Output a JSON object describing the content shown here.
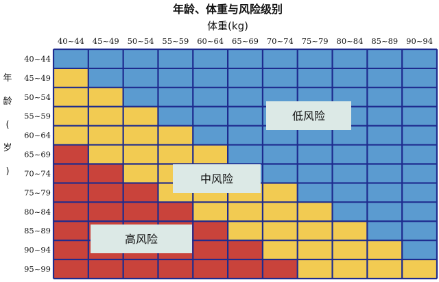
{
  "colors": {
    "low": "#5b9bd0",
    "mid": "#f2cb52",
    "high": "#c9433b",
    "grid": "#1e2b8e",
    "label_box": "#dce9e6"
  },
  "chart_data": {
    "type": "heatmap",
    "title": "年龄、体重与风险级别",
    "xlabel": "体重(kg)",
    "ylabel": "年龄(岁)",
    "x": [
      "40~44",
      "45~49",
      "50~54",
      "55~59",
      "60~64",
      "65~69",
      "70~74",
      "75~79",
      "80~84",
      "85~89",
      "90~94"
    ],
    "y": [
      "40~44",
      "45~49",
      "50~54",
      "55~59",
      "60~64",
      "65~69",
      "70~74",
      "75~79",
      "80~84",
      "85~89",
      "90~94",
      "95~99"
    ],
    "legend_categories": [
      "低风险",
      "中风险",
      "高风险"
    ],
    "values": [
      [
        "低风险",
        "低风险",
        "低风险",
        "低风险",
        "低风险",
        "低风险",
        "低风险",
        "低风险",
        "低风险",
        "低风险",
        "低风险"
      ],
      [
        "中风险",
        "低风险",
        "低风险",
        "低风险",
        "低风险",
        "低风险",
        "低风险",
        "低风险",
        "低风险",
        "低风险",
        "低风险"
      ],
      [
        "中风险",
        "中风险",
        "低风险",
        "低风险",
        "低风险",
        "低风险",
        "低风险",
        "低风险",
        "低风险",
        "低风险",
        "低风险"
      ],
      [
        "中风险",
        "中风险",
        "中风险",
        "低风险",
        "低风险",
        "低风险",
        "低风险",
        "低风险",
        "低风险",
        "低风险",
        "低风险"
      ],
      [
        "中风险",
        "中风险",
        "中风险",
        "中风险",
        "低风险",
        "低风险",
        "低风险",
        "低风险",
        "低风险",
        "低风险",
        "低风险"
      ],
      [
        "高风险",
        "中风险",
        "中风险",
        "中风险",
        "中风险",
        "低风险",
        "低风险",
        "低风险",
        "低风险",
        "低风险",
        "低风险"
      ],
      [
        "高风险",
        "高风险",
        "中风险",
        "中风险",
        "中风险",
        "低风险",
        "低风险",
        "低风险",
        "低风险",
        "低风险",
        "低风险"
      ],
      [
        "高风险",
        "高风险",
        "高风险",
        "中风险",
        "中风险",
        "中风险",
        "中风险",
        "低风险",
        "低风险",
        "低风险",
        "低风险"
      ],
      [
        "高风险",
        "高风险",
        "高风险",
        "高风险",
        "中风险",
        "中风险",
        "中风险",
        "中风险",
        "低风险",
        "低风险",
        "低风险"
      ],
      [
        "高风险",
        "高风险",
        "高风险",
        "高风险",
        "高风险",
        "中风险",
        "中风险",
        "中风险",
        "中风险",
        "低风险",
        "低风险"
      ],
      [
        "高风险",
        "高风险",
        "高风险",
        "高风险",
        "高风险",
        "高风险",
        "中风险",
        "中风险",
        "中风险",
        "中风险",
        "低风险"
      ],
      [
        "高风险",
        "高风险",
        "高风险",
        "高风险",
        "高风险",
        "高风险",
        "高风险",
        "中风险",
        "中风险",
        "中风险",
        "中风险"
      ]
    ],
    "annotations": [
      {
        "text": "低风险",
        "category": "低风险"
      },
      {
        "text": "中风险",
        "category": "中风险"
      },
      {
        "text": "高风险",
        "category": "高风险"
      }
    ],
    "legend": "none",
    "grid": true
  }
}
